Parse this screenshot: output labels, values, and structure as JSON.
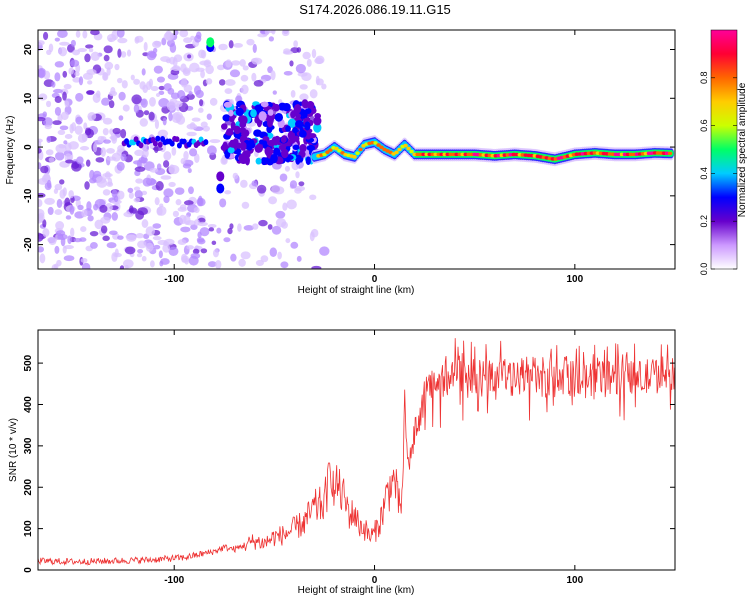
{
  "title": "S174.2026.086.19.11.G15",
  "chart_data": [
    {
      "type": "heatmap",
      "xlabel": "Height of straight line (km)",
      "ylabel": "Frequency (Hz)",
      "xlim": [
        -168,
        150
      ],
      "ylim": [
        -25,
        24
      ],
      "xticks": [
        -100,
        0,
        100
      ],
      "yticks": [
        -20,
        -10,
        0,
        10,
        20
      ],
      "colorbar": {
        "label": "Normalized spectral amplitude",
        "range": [
          0,
          1
        ],
        "ticks": [
          0.0,
          0.2,
          0.4,
          0.6,
          0.8
        ],
        "colormap": [
          "#ffffff",
          "#cc99ff",
          "#6600cc",
          "#0000ff",
          "#00ccff",
          "#00ff66",
          "#ccff00",
          "#ffcc00",
          "#ff6600",
          "#ff0033",
          "#ff0099"
        ]
      },
      "dominant_frequency_track": {
        "x": [
          -30,
          -25,
          -20,
          -15,
          -10,
          -5,
          0,
          5,
          10,
          15,
          20,
          30,
          40,
          50,
          60,
          70,
          80,
          90,
          100,
          110,
          120,
          130,
          140,
          148
        ],
        "y": [
          -2.0,
          -1.5,
          0.0,
          -1.5,
          -2.0,
          0.5,
          1.0,
          -0.5,
          -1.5,
          0.5,
          -1.5,
          -1.5,
          -1.5,
          -1.5,
          -1.8,
          -1.5,
          -1.8,
          -2.5,
          -1.5,
          -1.2,
          -1.5,
          -1.5,
          -1.2,
          -1.3
        ]
      }
    },
    {
      "type": "line",
      "xlabel": "Height of straight line (km)",
      "ylabel": "SNR (10 * v/v)",
      "xlim": [
        -168,
        150
      ],
      "ylim": [
        0,
        580
      ],
      "xticks": [
        -100,
        0,
        100
      ],
      "yticks": [
        0,
        100,
        200,
        300,
        400,
        500
      ],
      "series": [
        {
          "color": "#ee3333",
          "x": [
            -168,
            -150,
            -130,
            -110,
            -95,
            -85,
            -80,
            -75,
            -70,
            -65,
            -60,
            -55,
            -50,
            -45,
            -40,
            -35,
            -30,
            -25,
            -22,
            -20,
            -18,
            -17,
            -15,
            -12,
            -10,
            -8,
            -5,
            -2,
            0,
            3,
            5,
            8,
            10,
            12,
            14,
            15,
            16,
            18,
            20,
            22,
            25,
            28,
            30,
            35,
            40,
            45,
            50,
            55,
            60,
            65,
            70,
            75,
            80,
            85,
            90,
            95,
            100,
            110,
            120,
            130,
            140,
            150
          ],
          "y": [
            22,
            20,
            22,
            25,
            30,
            40,
            45,
            55,
            50,
            60,
            70,
            65,
            80,
            85,
            100,
            115,
            150,
            160,
            250,
            185,
            210,
            190,
            170,
            130,
            140,
            110,
            100,
            80,
            90,
            120,
            160,
            210,
            220,
            150,
            180,
            400,
            290,
            260,
            340,
            350,
            400,
            440,
            450,
            460,
            470,
            480,
            470,
            460,
            475,
            470,
            455,
            480,
            470,
            450,
            460,
            470,
            460,
            455,
            470,
            460,
            470,
            480
          ]
        }
      ]
    }
  ]
}
